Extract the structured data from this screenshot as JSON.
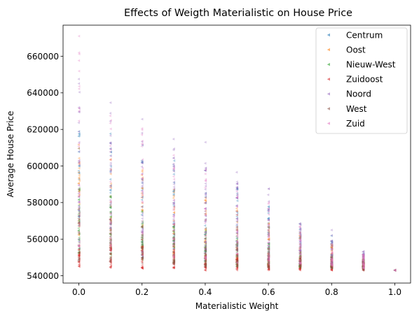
{
  "chart_data": {
    "type": "scatter",
    "title": "Effects of Weigth Materialistic on House Price",
    "xlabel": "Materialistic Weight",
    "ylabel": "Average House Price",
    "xlim": [
      -0.05,
      1.05
    ],
    "ylim": [
      536000,
      677000
    ],
    "xticks": [
      0.0,
      0.2,
      0.4,
      0.6,
      0.8,
      1.0
    ],
    "xtick_labels": [
      "0.0",
      "0.2",
      "0.4",
      "0.6",
      "0.8",
      "1.0"
    ],
    "yticks": [
      540000,
      560000,
      580000,
      600000,
      620000,
      640000,
      660000
    ],
    "ytick_labels": [
      "540000",
      "560000",
      "580000",
      "600000",
      "620000",
      "640000",
      "660000"
    ],
    "legend_position": "top-right",
    "marker": "left-pointing triangle",
    "x": [
      0.0,
      0.1,
      0.2,
      0.3,
      0.4,
      0.5,
      0.6,
      0.7,
      0.8,
      0.9,
      1.0
    ],
    "series": [
      {
        "name": "Centrum",
        "color": "#1f77b4",
        "ranges": [
          [
            555000,
            625000
          ],
          [
            552000,
            618000
          ],
          [
            550000,
            612000
          ],
          [
            549000,
            604000
          ],
          [
            548000,
            598000
          ],
          [
            547000,
            590000
          ],
          [
            546000,
            580000
          ],
          [
            545000,
            570000
          ],
          [
            545000,
            562000
          ],
          [
            544000,
            553000
          ],
          [
            543000,
            543000
          ]
        ]
      },
      {
        "name": "Oost",
        "color": "#ff7f0e",
        "ranges": [
          [
            560000,
            612000
          ],
          [
            555000,
            605000
          ],
          [
            552000,
            598000
          ],
          [
            550000,
            592000
          ],
          [
            549000,
            585000
          ],
          [
            547000,
            578000
          ],
          [
            546000,
            570000
          ],
          [
            545000,
            564000
          ],
          [
            545000,
            558000
          ],
          [
            544000,
            552000
          ],
          [
            543000,
            543000
          ]
        ]
      },
      {
        "name": "Nieuw-West",
        "color": "#2ca02c",
        "ranges": [
          [
            552000,
            590000
          ],
          [
            550000,
            584000
          ],
          [
            548000,
            576000
          ],
          [
            547000,
            570000
          ],
          [
            546000,
            566000
          ],
          [
            545000,
            562000
          ],
          [
            545000,
            558000
          ],
          [
            544000,
            555000
          ],
          [
            544000,
            552000
          ],
          [
            544000,
            549000
          ],
          [
            543000,
            543000
          ]
        ]
      },
      {
        "name": "Zuidoost",
        "color": "#d62728",
        "ranges": [
          [
            544000,
            558000
          ],
          [
            544000,
            557000
          ],
          [
            544000,
            556000
          ],
          [
            544000,
            555000
          ],
          [
            543000,
            553000
          ],
          [
            543000,
            552000
          ],
          [
            543000,
            551000
          ],
          [
            543000,
            550000
          ],
          [
            543000,
            549000
          ],
          [
            543000,
            548000
          ],
          [
            543000,
            543000
          ]
        ]
      },
      {
        "name": "Noord",
        "color": "#9467bd",
        "ranges": [
          [
            575000,
            649000
          ],
          [
            568000,
            637000
          ],
          [
            563000,
            628000
          ],
          [
            558000,
            615000
          ],
          [
            554000,
            604000
          ],
          [
            551000,
            597000
          ],
          [
            549000,
            588000
          ],
          [
            547000,
            575000
          ],
          [
            546000,
            565000
          ],
          [
            545000,
            554000
          ],
          [
            543000,
            543000
          ]
        ]
      },
      {
        "name": "West",
        "color": "#8c564b",
        "ranges": [
          [
            548000,
            575000
          ],
          [
            547000,
            572000
          ],
          [
            546000,
            568000
          ],
          [
            546000,
            565000
          ],
          [
            545000,
            561000
          ],
          [
            545000,
            559000
          ],
          [
            544000,
            556000
          ],
          [
            544000,
            553000
          ],
          [
            544000,
            551000
          ],
          [
            543000,
            549000
          ],
          [
            543000,
            543000
          ]
        ]
      },
      {
        "name": "Zuid",
        "color": "#e377c2",
        "ranges": [
          [
            556000,
            671000
          ],
          [
            553000,
            631000
          ],
          [
            551000,
            622000
          ],
          [
            550000,
            611000
          ],
          [
            549000,
            599000
          ],
          [
            547000,
            590000
          ],
          [
            546000,
            580000
          ],
          [
            546000,
            570000
          ],
          [
            545000,
            561000
          ],
          [
            544000,
            552000
          ],
          [
            543000,
            543000
          ]
        ]
      }
    ],
    "outliers": [
      {
        "series": "Zuid",
        "x": 0.0,
        "y": 671000
      },
      {
        "series": "Zuid",
        "x": 0.0,
        "y": 662000
      },
      {
        "series": "Noord",
        "x": 0.4,
        "y": 613000
      }
    ]
  }
}
